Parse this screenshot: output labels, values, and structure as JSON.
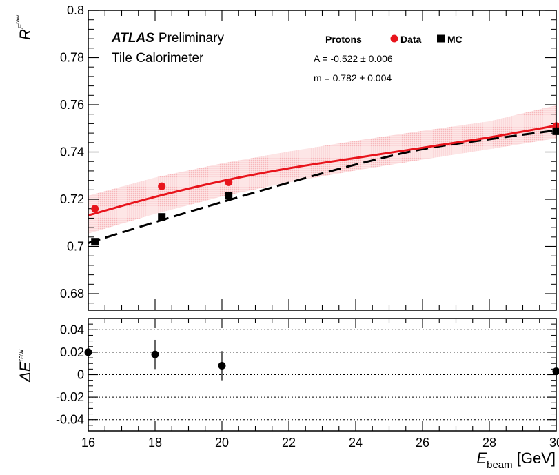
{
  "colors": {
    "data": "#e8141c",
    "mc": "#000000",
    "band": "#f7b8bb",
    "frame": "#000000"
  },
  "chart_data": [
    {
      "panel": "main",
      "type": "scatter",
      "xlim": [
        16,
        30
      ],
      "ylim": [
        0.673,
        0.8
      ],
      "yticks": [
        "0.8",
        "0.78",
        "0.76",
        "0.74",
        "0.72",
        "0.7",
        "0.68"
      ],
      "ylabel": {
        "main": "R",
        "sup": "E",
        "supsup": "raw"
      },
      "annotation": {
        "experiment": "ATLAS",
        "status": "Preliminary",
        "detector": "Tile Calorimeter",
        "fit_A": "A = -0.522 ± 0.006",
        "fit_m": "m = 0.782 ± 0.004"
      },
      "legend": {
        "title": "Protons",
        "entries": [
          "Data",
          "MC"
        ],
        "placement": "top-right"
      },
      "series": [
        {
          "name": "Data",
          "marker": "circle",
          "x": [
            16.2,
            18.2,
            20.2,
            30.0
          ],
          "y": [
            0.716,
            0.7255,
            0.7272,
            0.751
          ]
        },
        {
          "name": "MC",
          "marker": "square",
          "x": [
            16.2,
            18.2,
            20.2,
            30.0
          ],
          "y": [
            0.702,
            0.7125,
            0.7215,
            0.7488
          ]
        }
      ],
      "fit_curves": [
        {
          "series": "Data",
          "style": "solid",
          "x": [
            16,
            18,
            20,
            22,
            24,
            26,
            28,
            30
          ],
          "y": [
            0.7132,
            0.721,
            0.7277,
            0.7331,
            0.7375,
            0.7418,
            0.7462,
            0.7512
          ]
        },
        {
          "series": "MC",
          "style": "dashed",
          "x": [
            16,
            18,
            20,
            22,
            24,
            26,
            28,
            30
          ],
          "y": [
            0.7015,
            0.7103,
            0.7188,
            0.727,
            0.7347,
            0.7412,
            0.7454,
            0.7492
          ]
        }
      ],
      "uncertainty_band": {
        "series": "Data",
        "x": [
          16,
          18,
          20,
          22,
          24,
          26,
          28,
          30
        ],
        "lower": [
          0.7055,
          0.7138,
          0.7212,
          0.7272,
          0.7322,
          0.7368,
          0.7412,
          0.7458
        ],
        "upper": [
          0.7215,
          0.7292,
          0.7352,
          0.7402,
          0.7448,
          0.749,
          0.753,
          0.7598
        ]
      }
    },
    {
      "panel": "ratio",
      "type": "scatter",
      "xlim": [
        16,
        30
      ],
      "ylim": [
        -0.05,
        0.05
      ],
      "xticks": [
        "16",
        "18",
        "20",
        "22",
        "24",
        "26",
        "28",
        "30"
      ],
      "yticks": [
        "0.04",
        "0.02",
        "0",
        "-0.02",
        "-0.04"
      ],
      "gridlines_y": [
        0.04,
        0.02,
        0,
        -0.02,
        -0.04
      ],
      "ylabel": {
        "main": "ΔE",
        "sup": "raw"
      },
      "xlabel": {
        "main": "E",
        "sub": "beam",
        "unit": " [GeV]"
      },
      "series": [
        {
          "name": "",
          "marker": "circle",
          "x": [
            16,
            18,
            20,
            30
          ],
          "y": [
            0.02,
            0.018,
            0.008,
            0.003
          ],
          "err": [
            0.012,
            0.013,
            0.013,
            0.012
          ]
        }
      ]
    }
  ]
}
